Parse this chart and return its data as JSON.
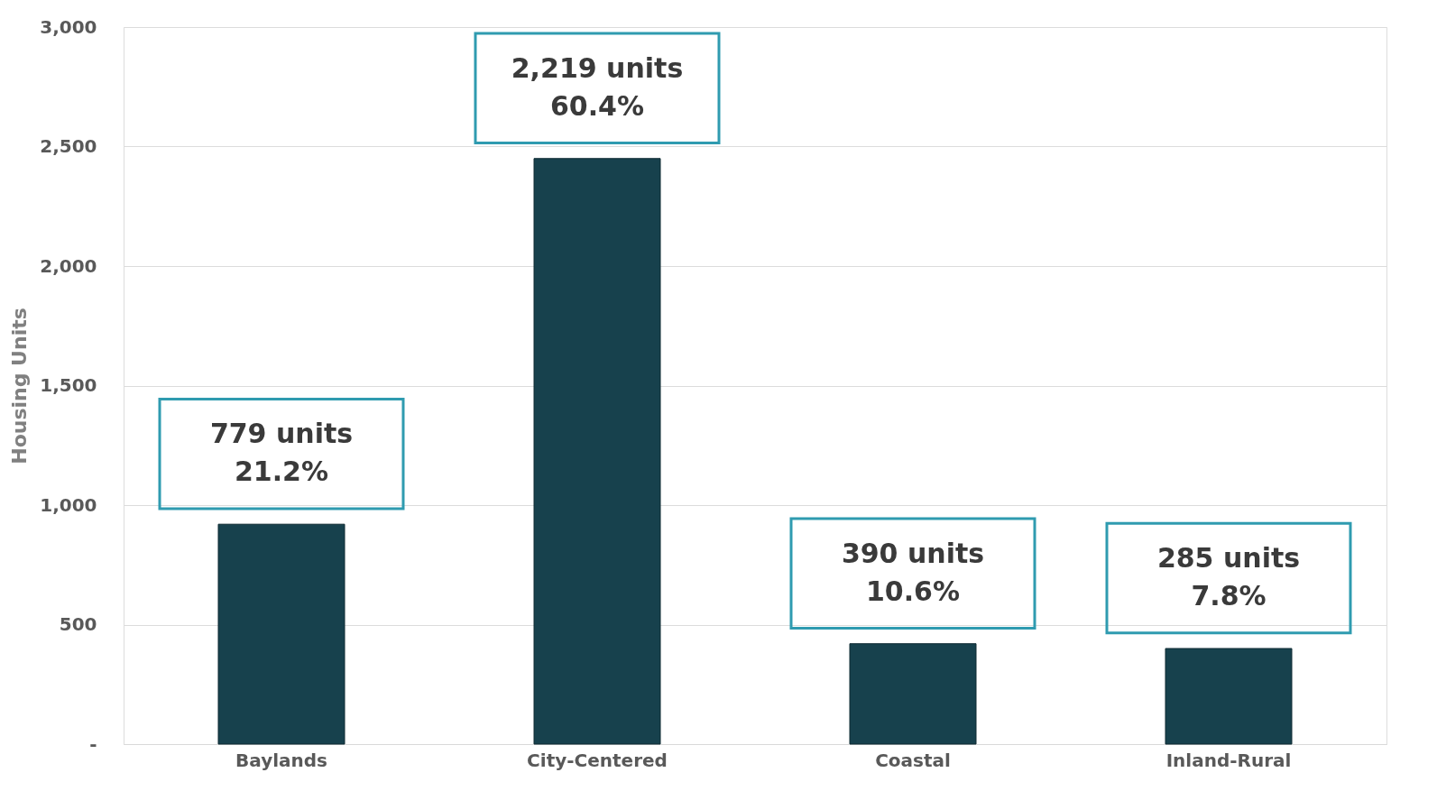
{
  "chart_data": {
    "type": "bar",
    "ylabel": "Housing Units",
    "categories": [
      "Baylands",
      "City-Centered",
      "Coastal",
      "Inland-Rural"
    ],
    "values": [
      920,
      2450,
      420,
      400
    ],
    "color": "#17414d",
    "annotations": [
      {
        "text": "779 units\n21.2%",
        "x": "Baylands",
        "y": 920
      },
      {
        "text": "2,219 units\n60.4%",
        "x": "City-Centered",
        "y": 2450
      },
      {
        "text": "390 units\n10.6%",
        "x": "Coastal",
        "y": 420
      },
      {
        "text": "285 units\n7.8%",
        "x": "Inland-Rural",
        "y": 400
      }
    ],
    "ylim": [
      0,
      3000
    ],
    "yticks": [
      {
        "value": 0,
        "label": "-"
      },
      500,
      {
        "value": 1000,
        "label": "1,000"
      },
      {
        "value": 1500,
        "label": "1,500"
      },
      {
        "value": 2000,
        "label": "2,000"
      },
      {
        "value": 2500,
        "label": "2,500"
      },
      {
        "value": 3000,
        "label": "3,000"
      }
    ],
    "grid": "y"
  }
}
